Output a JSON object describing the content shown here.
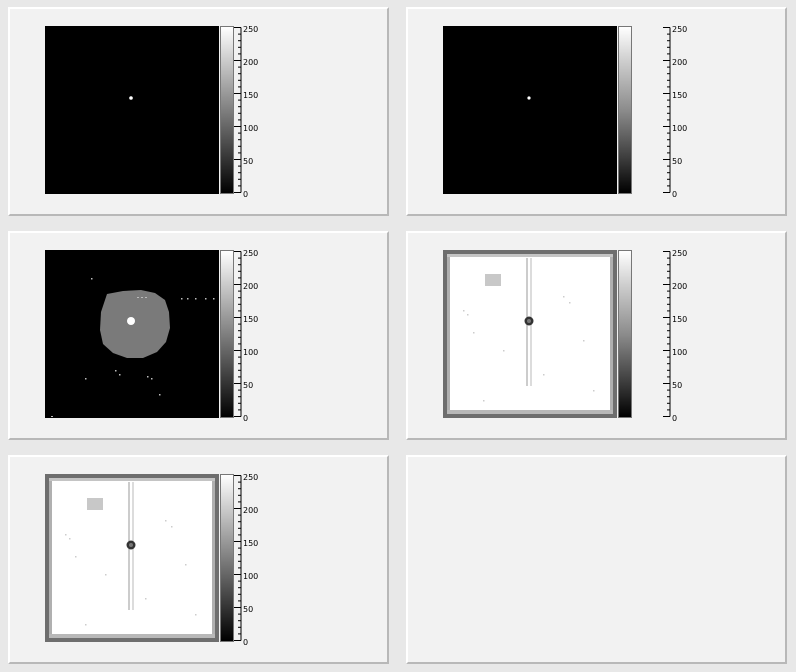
{
  "colorbar": {
    "labels": [
      "250",
      "200",
      "150",
      "100",
      "50",
      "0"
    ]
  },
  "pads": [
    {
      "name": "pad-1",
      "image": "dark-single-point"
    },
    {
      "name": "pad-2",
      "image": "dark-single-point"
    },
    {
      "name": "pad-3",
      "image": "gray-blob"
    },
    {
      "name": "pad-4",
      "image": "white-frame"
    },
    {
      "name": "pad-5",
      "image": "white-frame"
    },
    {
      "name": "pad-6",
      "image": "empty"
    }
  ]
}
